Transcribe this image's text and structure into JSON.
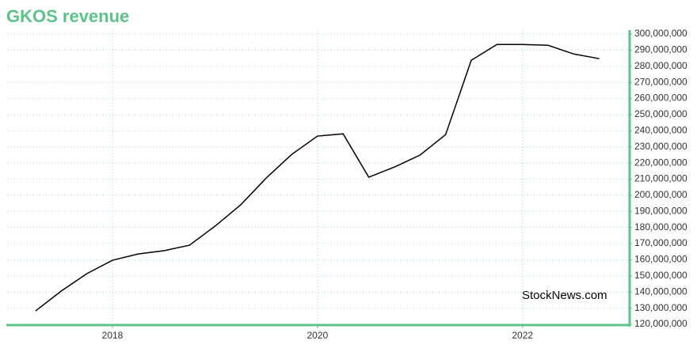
{
  "chart_data": {
    "type": "line",
    "title": "GKOS revenue",
    "watermark": "StockNews.com",
    "x": [
      2017.25,
      2017.5,
      2017.75,
      2018,
      2018.25,
      2018.5,
      2018.75,
      2019,
      2019.25,
      2019.5,
      2019.75,
      2020,
      2020.25,
      2020.5,
      2020.75,
      2021,
      2021.25,
      2021.5,
      2021.75,
      2022,
      2022.25,
      2022.5,
      2022.75
    ],
    "series": [
      {
        "name": "GKOS",
        "color": "#000000",
        "values": [
          128300000,
          140600000,
          151400000,
          159700000,
          163600000,
          165600000,
          169000000,
          180800000,
          194000000,
          210700000,
          225400000,
          236700000,
          238100000,
          211200000,
          217500000,
          224900000,
          237600000,
          283700000,
          293500000,
          293500000,
          293000000,
          287600000,
          284700000
        ]
      }
    ],
    "xlim": [
      2016.98,
      2023.03
    ],
    "xticks": [
      2018,
      2020,
      2022
    ],
    "ylim": [
      120000000,
      300000000
    ],
    "yticks": [
      {
        "value": 120000000,
        "label": "120,000,000"
      },
      {
        "value": 130000000,
        "label": "130,000,000"
      },
      {
        "value": 140000000,
        "label": "140,000,000"
      },
      {
        "value": 150000000,
        "label": "150,000,000"
      },
      {
        "value": 160000000,
        "label": "160,000,000"
      },
      {
        "value": 170000000,
        "label": "170,000,000"
      },
      {
        "value": 180000000,
        "label": "180,000,000"
      },
      {
        "value": 190000000,
        "label": "190,000,000"
      },
      {
        "value": 200000000,
        "label": "200,000,000"
      },
      {
        "value": 210000000,
        "label": "210,000,000"
      },
      {
        "value": 220000000,
        "label": "220,000,000"
      },
      {
        "value": 230000000,
        "label": "230,000,000"
      },
      {
        "value": 240000000,
        "label": "240,000,000"
      },
      {
        "value": 250000000,
        "label": "250,000,000"
      },
      {
        "value": 260000000,
        "label": "260,000,000"
      },
      {
        "value": 270000000,
        "label": "270,000,000"
      },
      {
        "value": 280000000,
        "label": "280,000,000"
      },
      {
        "value": 290000000,
        "label": "290,000,000"
      },
      {
        "value": 300000000,
        "label": "300,000,000"
      }
    ],
    "grid": true,
    "axis_color": "#5cc489"
  }
}
